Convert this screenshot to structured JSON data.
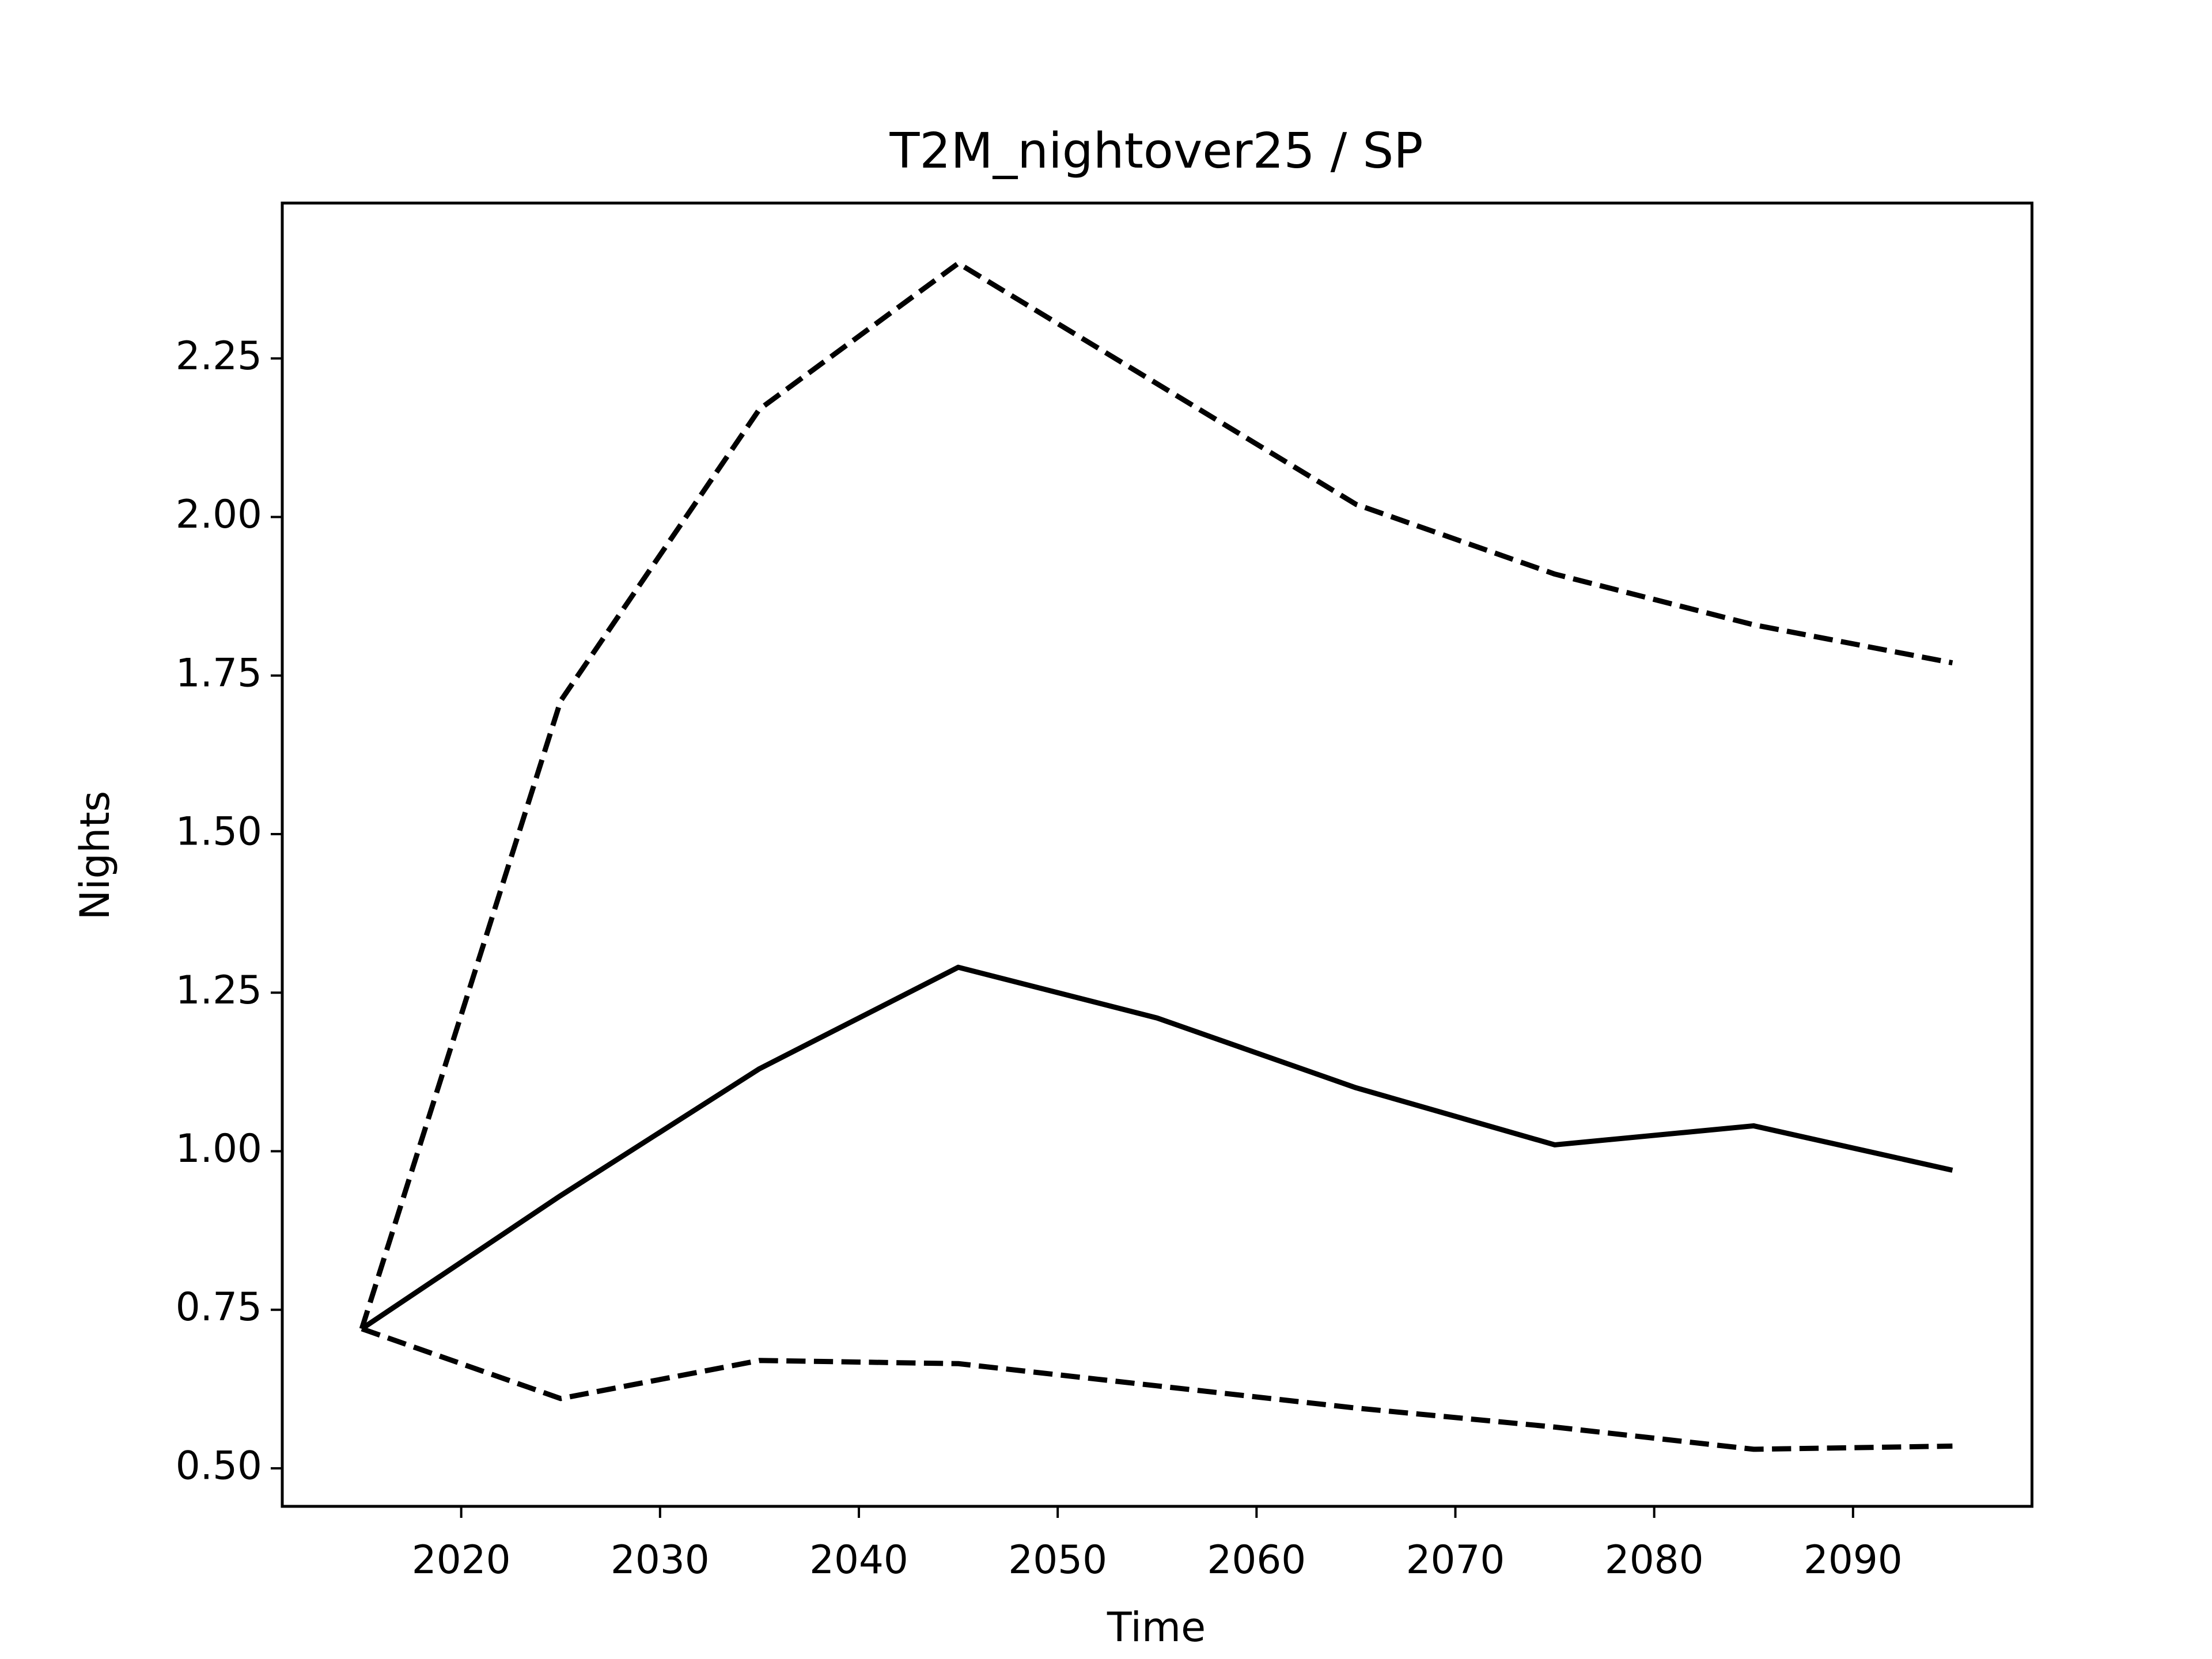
{
  "chart_data": {
    "type": "line",
    "title": "T2M_nightover25 / SP",
    "x_label": "Time",
    "y_label": "Nights",
    "x": [
      2015,
      2025,
      2035,
      2045,
      2055,
      2065,
      2075,
      2085,
      2095
    ],
    "series": [
      {
        "color": "#000000",
        "linestyle": "solid",
        "values": [
          0.72,
          0.93,
          1.13,
          1.29,
          1.21,
          1.1,
          1.01,
          1.04,
          0.97
        ]
      },
      {
        "color": "#000000",
        "linestyle": "dashed",
        "values": [
          0.72,
          1.71,
          2.17,
          2.4,
          2.21,
          2.02,
          1.91,
          1.83,
          1.77
        ]
      },
      {
        "color": "#000000",
        "linestyle": "dashed",
        "values": [
          0.72,
          0.61,
          0.67,
          0.665,
          0.63,
          0.595,
          0.565,
          0.53,
          0.535
        ]
      }
    ],
    "xlim": [
      2011,
      2099
    ],
    "xticks": [
      2020,
      2030,
      2040,
      2050,
      2060,
      2070,
      2080,
      2090
    ],
    "ylim": [
      0.44,
      2.495
    ],
    "yticks": [
      {
        "value": 0.5,
        "label": "0.50"
      },
      {
        "value": 0.75,
        "label": "0.75"
      },
      {
        "value": 1,
        "label": "1.00"
      },
      {
        "value": 1.25,
        "label": "1.25"
      },
      {
        "value": 1.5,
        "label": "1.50"
      },
      {
        "value": 1.75,
        "label": "1.75"
      },
      {
        "value": 2,
        "label": "2.00"
      },
      {
        "value": 2.25,
        "label": "2.25"
      }
    ],
    "grid": false
  }
}
